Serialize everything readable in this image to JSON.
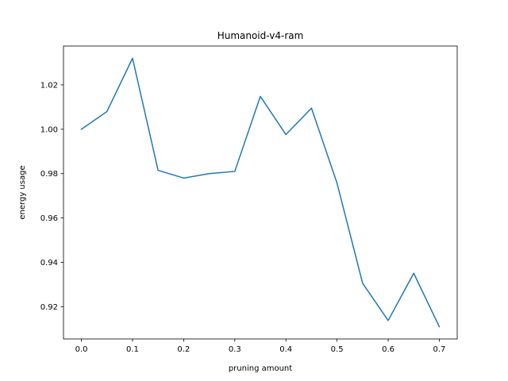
{
  "chart_data": {
    "type": "line",
    "title": "Humanoid-v4-ram",
    "xlabel": "pruning amount",
    "ylabel": "energy usage",
    "xlim": [
      -0.035,
      0.735
    ],
    "ylim": [
      0.9055,
      1.0375
    ],
    "grid": false,
    "xticks": [
      0.0,
      0.1,
      0.2,
      0.3,
      0.4,
      0.5,
      0.6,
      0.7
    ],
    "xtick_labels": [
      "0.0",
      "0.1",
      "0.2",
      "0.3",
      "0.4",
      "0.5",
      "0.6",
      "0.7"
    ],
    "yticks": [
      0.92,
      0.94,
      0.96,
      0.98,
      1.0,
      1.02
    ],
    "ytick_labels": [
      "0.92",
      "0.94",
      "0.96",
      "0.98",
      "1.00",
      "1.02"
    ],
    "series": [
      {
        "color": "#1f77b4",
        "x": [
          0.0,
          0.05,
          0.1,
          0.15,
          0.2,
          0.25,
          0.3,
          0.35,
          0.4,
          0.45,
          0.5,
          0.55,
          0.6,
          0.65,
          0.7
        ],
        "y": [
          1.0,
          1.008,
          1.032,
          0.9815,
          0.978,
          0.98,
          0.981,
          1.0148,
          0.9976,
          1.0095,
          0.9757,
          0.9306,
          0.9138,
          0.9351,
          0.911
        ]
      }
    ]
  }
}
